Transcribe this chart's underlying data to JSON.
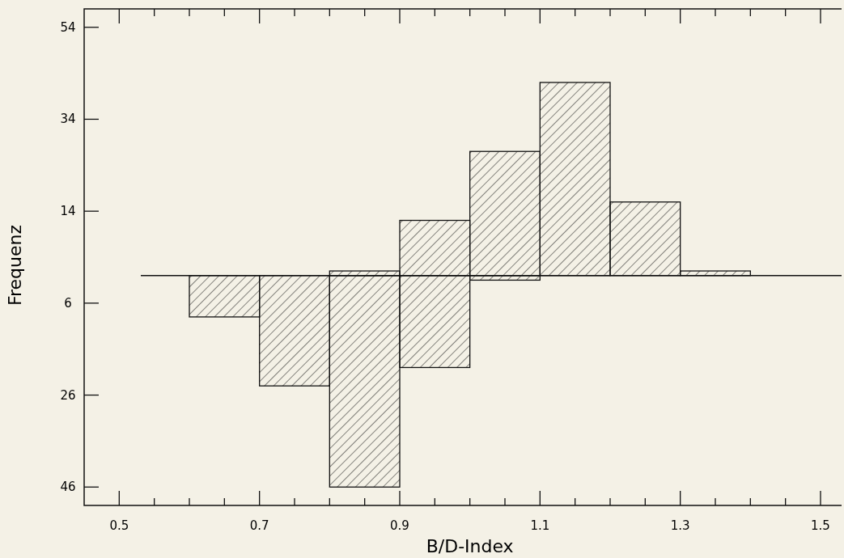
{
  "chart_data": {
    "type": "histogram",
    "xlabel": "B/D-Index",
    "ylabel": "Frequenz",
    "bins": [
      0.6,
      0.7,
      0.8,
      0.9,
      1.0,
      1.1,
      1.2,
      1.3,
      1.4
    ],
    "series": [
      {
        "color": "#111111",
        "values": [
          null,
          null,
          1,
          12,
          27,
          42,
          16,
          1
        ]
      },
      {
        "color": "#111111",
        "values": [
          -9,
          -24,
          -46,
          -20,
          -1,
          null,
          null,
          null
        ]
      }
    ],
    "xlim": [
      0.45,
      1.53
    ],
    "ylim": [
      -50,
      58
    ],
    "xticks": [
      0.5,
      {
        "value": 0.55,
        "label": null
      },
      {
        "value": 0.6,
        "label": null
      },
      {
        "value": 0.65,
        "label": null
      },
      0.7,
      {
        "value": 0.75,
        "label": null
      },
      {
        "value": 0.8,
        "label": null
      },
      {
        "value": 0.85,
        "label": null
      },
      0.9,
      {
        "value": 0.95,
        "label": null
      },
      {
        "value": 1.0,
        "label": null
      },
      {
        "value": 1.05,
        "label": null
      },
      1.1,
      {
        "value": 1.15,
        "label": null
      },
      {
        "value": 1.2,
        "label": null
      },
      {
        "value": 1.25,
        "label": null
      },
      1.3,
      {
        "value": 1.35,
        "label": null
      },
      {
        "value": 1.4,
        "label": null
      },
      {
        "value": 1.45,
        "label": null
      },
      1.5
    ],
    "yticks": [
      54,
      34,
      14,
      {
        "value": -6,
        "label": "6"
      },
      {
        "value": -26,
        "label": "26"
      },
      {
        "value": -46,
        "label": "46"
      }
    ],
    "grid": false
  }
}
